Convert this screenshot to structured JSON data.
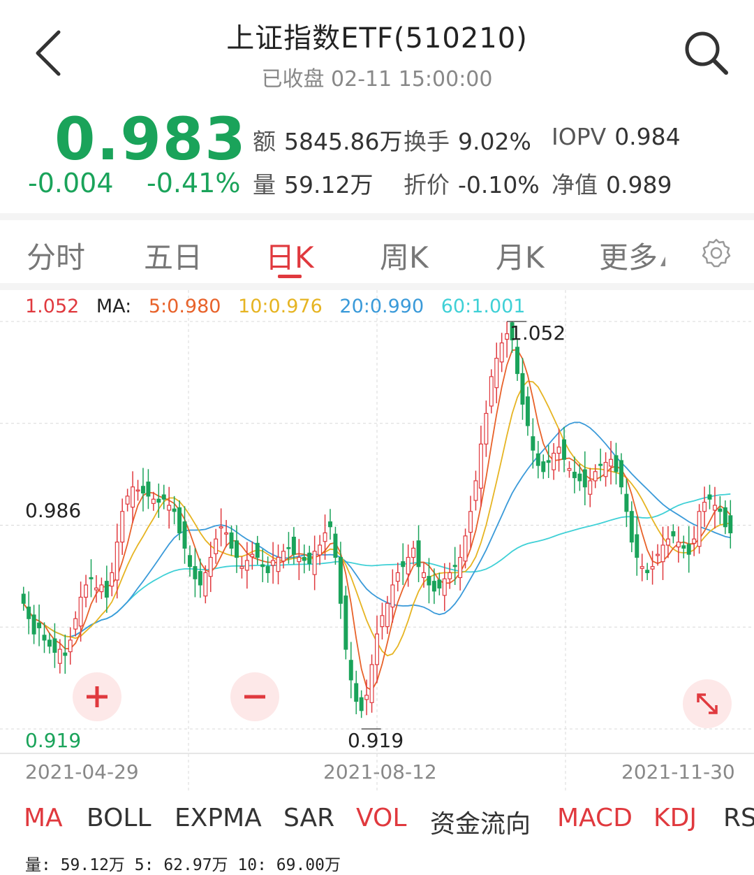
{
  "header": {
    "title": "上证指数ETF(510210)",
    "status": "已收盘 02-11 15:00:00"
  },
  "quote": {
    "price": "0.983",
    "change": "-0.004",
    "change_pct": "-0.41%",
    "amount_label": "额",
    "amount_value": "5845.86万",
    "turnover_label": "换手",
    "turnover_value": "9.02%",
    "iopv_label": "IOPV",
    "iopv_value": "0.984",
    "volume_label": "量",
    "volume_value": "59.12万",
    "discount_label": "折价",
    "discount_value": "-0.10%",
    "nav_label": "净值",
    "nav_value": "0.989"
  },
  "tabs": [
    {
      "label": "分时",
      "active": false
    },
    {
      "label": "五日",
      "active": false
    },
    {
      "label": "日K",
      "active": true
    },
    {
      "label": "周K",
      "active": false
    },
    {
      "label": "月K",
      "active": false
    },
    {
      "label": "更多",
      "active": false
    }
  ],
  "ma_legend": {
    "high": "1.052",
    "ma_label": "MA:",
    "ma5": "5:0.980",
    "ma10": "10:0.976",
    "ma20": "20:0.990",
    "ma60": "60:1.001"
  },
  "chart_labels": {
    "top": "1.052",
    "mid": "0.986",
    "bottom": "0.919",
    "peak": "1.052",
    "trough": "0.919"
  },
  "dates": [
    "2021-04-29",
    "2021-08-12",
    "2021-11-30"
  ],
  "indicators": [
    {
      "label": "MA",
      "color": "#e0393e"
    },
    {
      "label": "BOLL",
      "color": "#333333"
    },
    {
      "label": "EXPMA",
      "color": "#333333"
    },
    {
      "label": "SAR",
      "color": "#333333"
    },
    {
      "label": "VOL",
      "color": "#e0393e"
    },
    {
      "label": "资金流向",
      "color": "#333333"
    },
    {
      "label": "MACD",
      "color": "#e0393e"
    },
    {
      "label": "KDJ",
      "color": "#e0393e"
    },
    {
      "label": "RSI",
      "color": "#333333"
    }
  ],
  "volume_line": "量: 59.12万 5: 62.97万 10: 69.00万",
  "colors": {
    "up": "#e0393e",
    "down": "#1aa35a",
    "ma5": "#e8622a",
    "ma10": "#e6b422",
    "ma20": "#3a9ad9",
    "ma60": "#3fd0d6"
  },
  "chart_data": {
    "type": "candlestick",
    "ylim": [
      0.919,
      1.052
    ],
    "x_ticks": [
      "2021-04-29",
      "2021-08-12",
      "2021-11-30"
    ],
    "series_approx": {
      "close": [
        0.96,
        0.955,
        0.95,
        0.952,
        0.948,
        0.946,
        0.944,
        0.945,
        0.943,
        0.948,
        0.955,
        0.962,
        0.966,
        0.968,
        0.965,
        0.966,
        0.962,
        0.97,
        0.98,
        0.99,
        0.995,
        0.998,
        0.997,
        0.996,
        0.995,
        0.994,
        0.993,
        0.994,
        0.992,
        0.99,
        0.983,
        0.978,
        0.972,
        0.968,
        0.966,
        0.97,
        0.975,
        0.981,
        0.985,
        0.983,
        0.978,
        0.975,
        0.972,
        0.974,
        0.976,
        0.975,
        0.972,
        0.97,
        0.974,
        0.975,
        0.977,
        0.978,
        0.976,
        0.975,
        0.974,
        0.973,
        0.977,
        0.979,
        0.983,
        0.985,
        0.975,
        0.96,
        0.945,
        0.935,
        0.928,
        0.925,
        0.93,
        0.94,
        0.95,
        0.956,
        0.96,
        0.966,
        0.97,
        0.972,
        0.975,
        0.978,
        0.972,
        0.97,
        0.966,
        0.964,
        0.965,
        0.968,
        0.97,
        0.972,
        0.975,
        0.982,
        0.99,
        1.0,
        1.012,
        1.022,
        1.034,
        1.04,
        1.045,
        1.048,
        1.046,
        1.035,
        1.025,
        1.018,
        1.01,
        1.005,
        1.003,
        1.006,
        1.009,
        1.011,
        1.007,
        1.004,
        1.001,
        1.0,
        0.998,
        1.0,
        1.003,
        1.005,
        1.006,
        1.007,
        1.003,
        0.998,
        0.99,
        0.98,
        0.975,
        0.972,
        0.97,
        0.972,
        0.976,
        0.979,
        0.981,
        0.982,
        0.98,
        0.978,
        0.976,
        0.981,
        0.99,
        0.993,
        0.994,
        0.992,
        0.99,
        0.985,
        0.983
      ]
    }
  }
}
